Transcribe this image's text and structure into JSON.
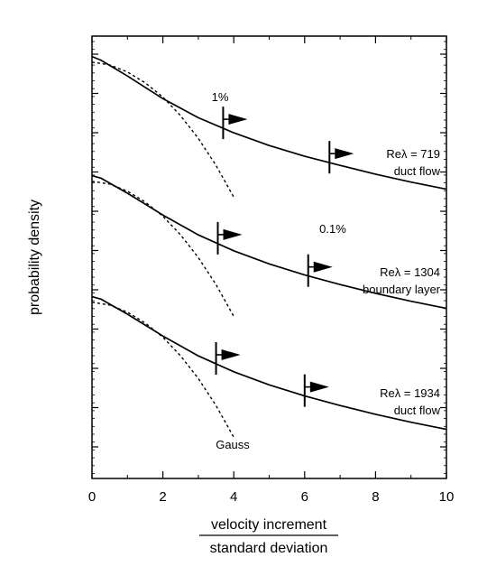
{
  "chart_data": {
    "type": "line",
    "xlabel_numerator": "velocity increment",
    "xlabel_denominator": "standard deviation",
    "ylabel": "probability density",
    "xlim": [
      0,
      10
    ],
    "xticks": [
      0,
      2,
      4,
      6,
      8,
      10
    ],
    "xtick_labels": [
      "0",
      "2",
      "4",
      "6",
      "8",
      "10"
    ],
    "y_scale": "log (vertically offset curves, unlabeled)",
    "grid": false,
    "series": [
      {
        "label": "Reλ = 719",
        "sublabel": "duct flow",
        "measured": [
          [
            0,
            0.06
          ],
          [
            0.25,
            0.15
          ],
          [
            1,
            0.55
          ],
          [
            2,
            1.12
          ],
          [
            3,
            1.6
          ],
          [
            4,
            1.98
          ],
          [
            5,
            2.3
          ],
          [
            6,
            2.57
          ],
          [
            7,
            2.8
          ],
          [
            8,
            3.02
          ],
          [
            9,
            3.22
          ],
          [
            10,
            3.4
          ]
        ],
        "gauss": [
          [
            0,
            0.2
          ],
          [
            0.5,
            0.27
          ],
          [
            1,
            0.45
          ],
          [
            1.5,
            0.72
          ],
          [
            2,
            1.08
          ],
          [
            2.5,
            1.55
          ],
          [
            3,
            2.12
          ],
          [
            3.5,
            2.8
          ],
          [
            4,
            3.6
          ]
        ],
        "marker_1pct": 3.7,
        "marker_01pct": 6.7
      },
      {
        "label": "Reλ = 1304",
        "sublabel": "boundary layer",
        "measured": [
          [
            0,
            0.06
          ],
          [
            0.25,
            0.12
          ],
          [
            1,
            0.5
          ],
          [
            2,
            1.05
          ],
          [
            3,
            1.55
          ],
          [
            4,
            1.95
          ],
          [
            5,
            2.28
          ],
          [
            6,
            2.56
          ],
          [
            7,
            2.8
          ],
          [
            8,
            3.02
          ],
          [
            9,
            3.22
          ],
          [
            10,
            3.4
          ]
        ],
        "gauss": [
          [
            0,
            0.2
          ],
          [
            0.5,
            0.27
          ],
          [
            1,
            0.45
          ],
          [
            1.5,
            0.72
          ],
          [
            2,
            1.08
          ],
          [
            2.5,
            1.55
          ],
          [
            3,
            2.12
          ],
          [
            3.5,
            2.8
          ],
          [
            4,
            3.6
          ]
        ],
        "marker_1pct": 3.55,
        "marker_01pct": 6.1
      },
      {
        "label": "Reλ = 1934",
        "sublabel": "duct flow",
        "measured": [
          [
            0,
            0.06
          ],
          [
            0.25,
            0.12
          ],
          [
            1,
            0.5
          ],
          [
            2,
            1.05
          ],
          [
            3,
            1.55
          ],
          [
            4,
            1.95
          ],
          [
            5,
            2.28
          ],
          [
            6,
            2.56
          ],
          [
            7,
            2.8
          ],
          [
            8,
            3.02
          ],
          [
            9,
            3.22
          ],
          [
            10,
            3.4
          ]
        ],
        "gauss": [
          [
            0,
            0.2
          ],
          [
            0.5,
            0.27
          ],
          [
            1,
            0.45
          ],
          [
            1.5,
            0.72
          ],
          [
            2,
            1.08
          ],
          [
            2.5,
            1.55
          ],
          [
            3,
            2.12
          ],
          [
            3.5,
            2.8
          ],
          [
            4,
            3.6
          ]
        ],
        "marker_1pct": 3.5,
        "marker_01pct": 6.0
      }
    ],
    "annotations": {
      "one_percent": "1%",
      "point_one_percent": "0.1%",
      "gauss": "Gauss"
    }
  }
}
